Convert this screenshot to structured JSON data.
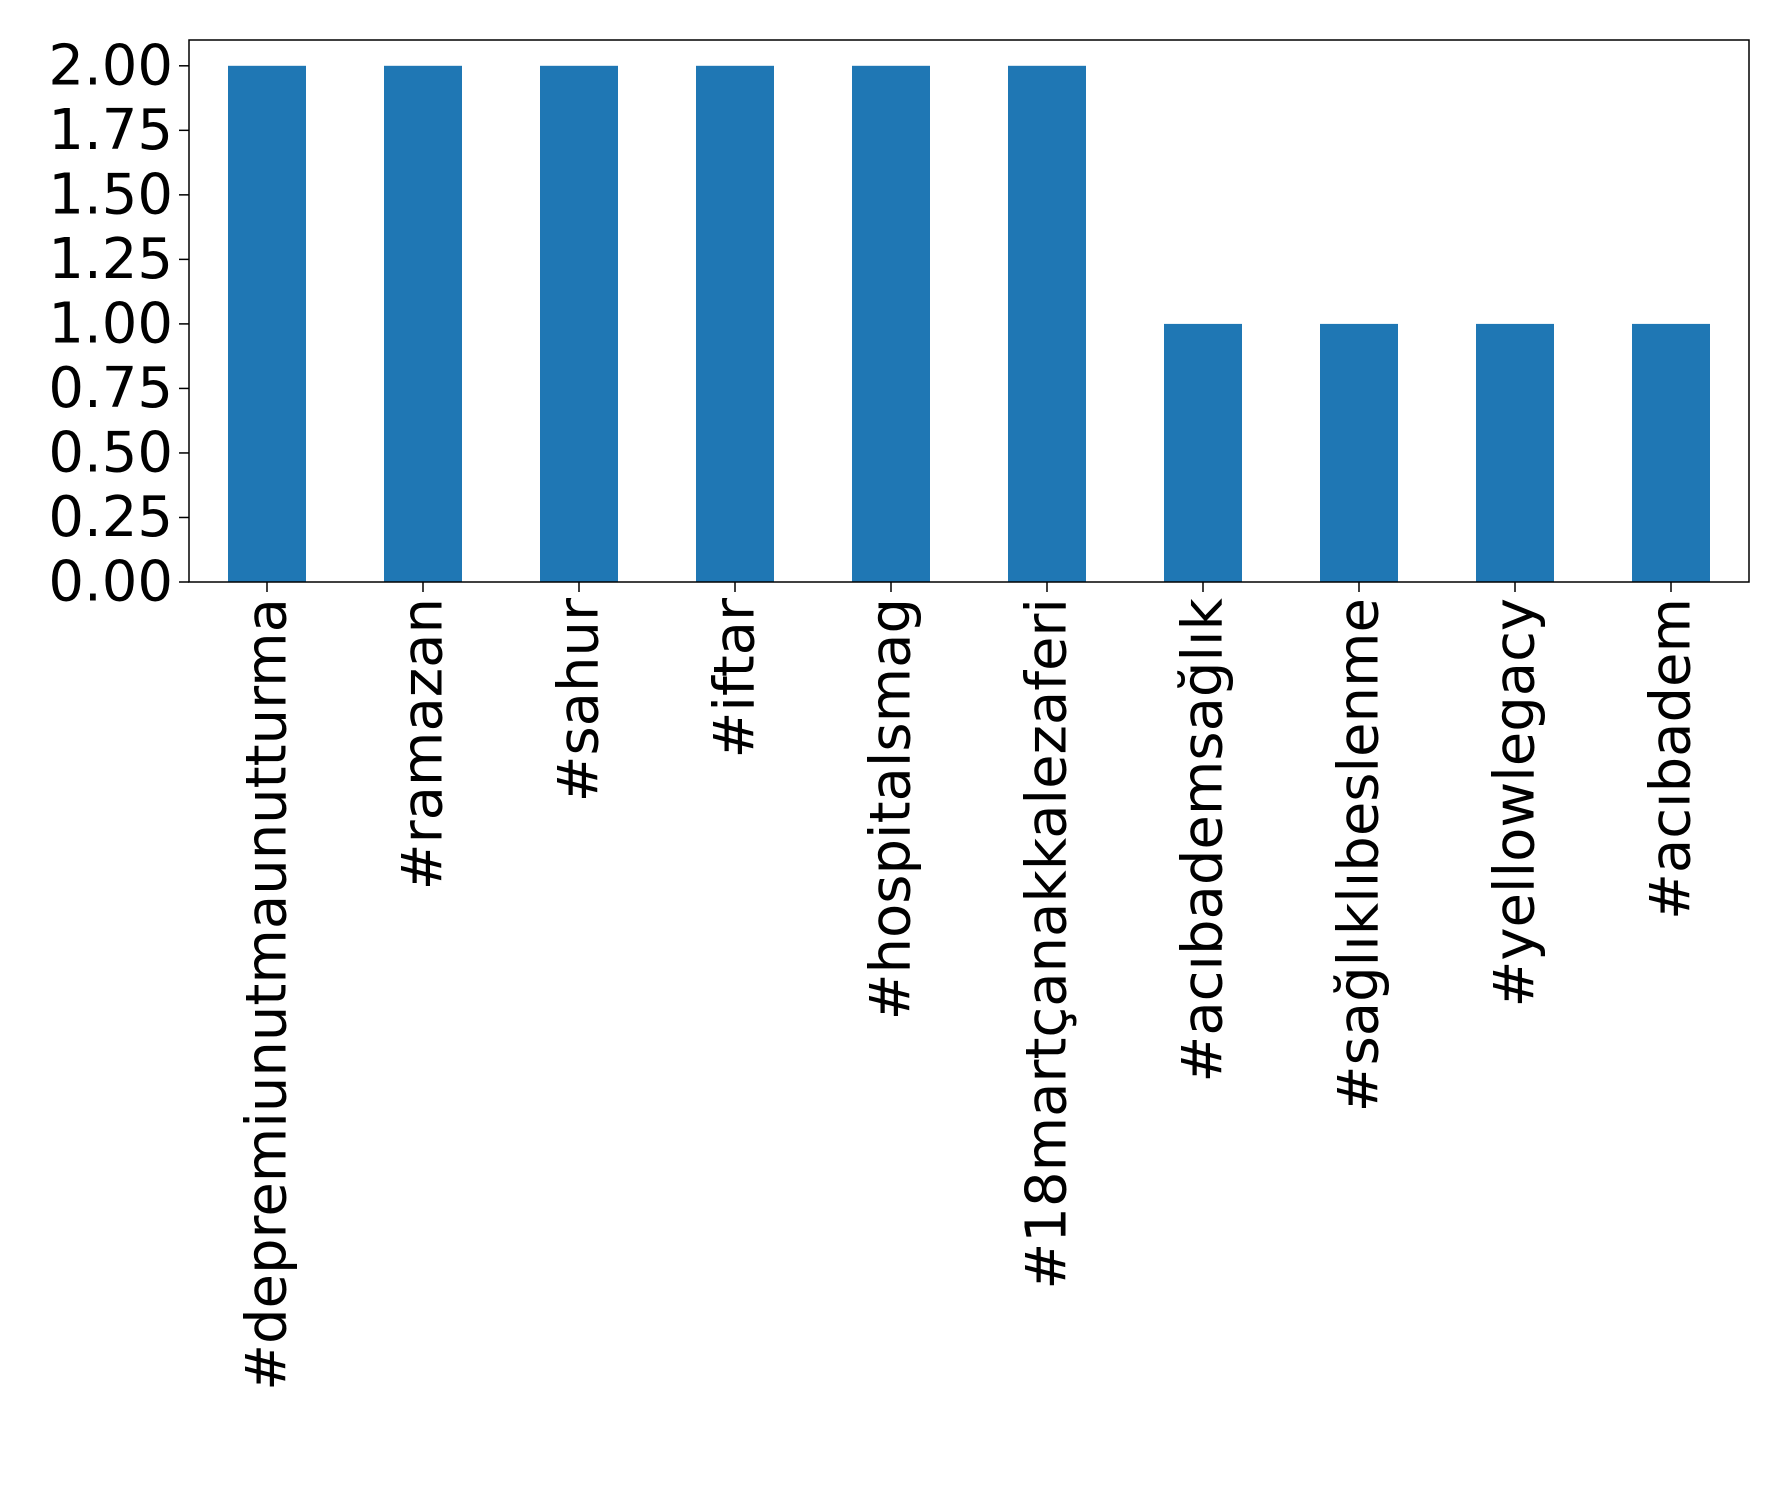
{
  "chart_data": {
    "type": "bar",
    "categories": [
      "#depremiunutmaunutturma",
      "#ramazan",
      "#sahur",
      "#iftar",
      "#hospitalsmag",
      "#18martçanakkalezaferi",
      "#acıbademsağlık",
      "#sağlıklıbeslenme",
      "#yellowlegacy",
      "#acıbadem"
    ],
    "values": [
      2,
      2,
      2,
      2,
      2,
      2,
      1,
      1,
      1,
      1
    ],
    "y_ticks": [
      "0.00",
      "0.25",
      "0.50",
      "0.75",
      "1.00",
      "1.25",
      "1.50",
      "1.75",
      "2.00"
    ],
    "ylim": [
      0,
      2.1
    ],
    "grid": false,
    "title": "",
    "xlabel": "",
    "ylabel": "",
    "colors": {
      "bar": "#1f77b4",
      "axes": "#000000",
      "background": "#ffffff"
    }
  }
}
